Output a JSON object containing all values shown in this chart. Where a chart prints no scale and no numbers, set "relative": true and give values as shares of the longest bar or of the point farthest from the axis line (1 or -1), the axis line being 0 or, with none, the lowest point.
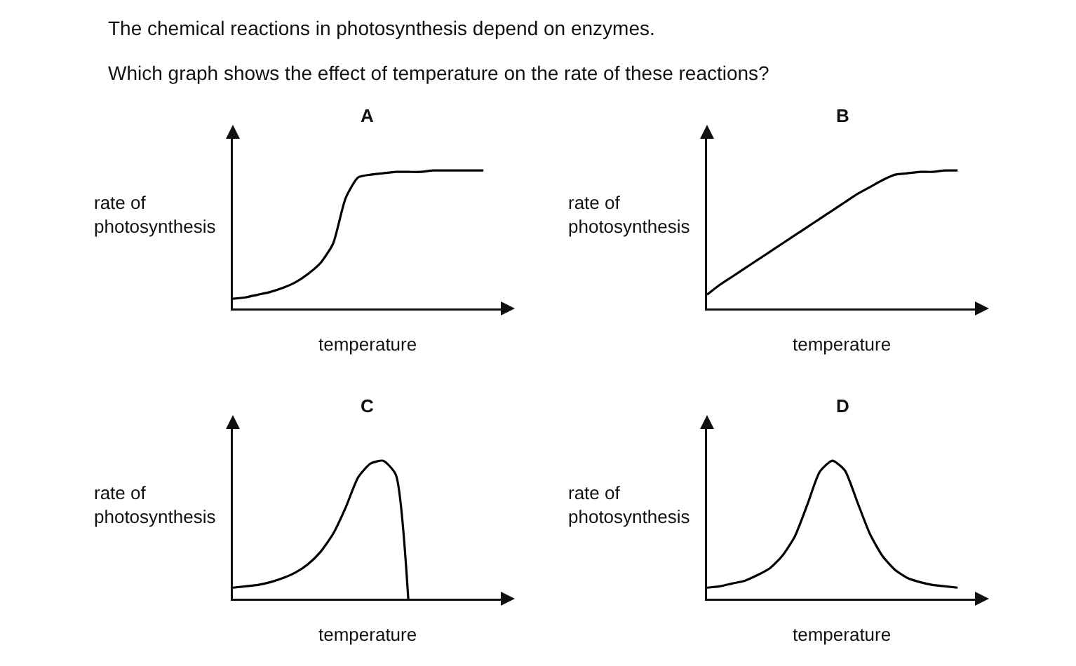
{
  "chart_data": [
    {
      "type": "line",
      "title": "A",
      "xlabel": "temperature",
      "ylabel": "rate of\nphotosynthesis",
      "relative": true,
      "annotations": [
        "The chemical reactions in photosynthesis depend on enzymes.",
        "Which graph shows the effect of temperature on the rate of these reactions?"
      ],
      "categories": [
        null,
        null,
        null,
        null,
        null,
        null,
        null,
        null,
        null,
        null,
        null,
        null,
        null,
        null,
        null,
        null,
        null,
        null,
        null,
        null,
        null
      ],
      "color": "#000000",
      "values": [
        0.07,
        0.08,
        0.1,
        0.12,
        0.15,
        0.19,
        0.25,
        0.33,
        0.47,
        0.8,
        0.95,
        0.97,
        0.98,
        0.99,
        0.99,
        0.99,
        1,
        1,
        1,
        1,
        1
      ]
    },
    {
      "type": "line",
      "title": "B",
      "xlabel": "temperature",
      "ylabel": "rate of\nphotosynthesis",
      "relative": true,
      "categories": [
        null,
        null,
        null,
        null,
        null,
        null,
        null,
        null,
        null,
        null,
        null,
        null,
        null,
        null,
        null,
        null,
        null,
        null,
        null,
        null,
        null
      ],
      "color": "#000000",
      "values": [
        0.1,
        0.17,
        0.23,
        0.29,
        0.35,
        0.41,
        0.47,
        0.53,
        0.59,
        0.65,
        0.71,
        0.77,
        0.83,
        0.88,
        0.93,
        0.97,
        0.98,
        0.99,
        0.99,
        1,
        1
      ]
    },
    {
      "type": "line",
      "title": "C",
      "xlabel": "temperature",
      "ylabel": "rate of\nphotosynthesis",
      "relative": true,
      "categories": [
        null,
        null,
        null,
        null,
        null,
        null,
        null,
        null,
        null,
        null,
        null,
        null,
        null,
        null,
        null,
        null,
        null,
        null,
        null,
        null,
        null
      ],
      "color": "#000000",
      "values": [
        0.08,
        0.09,
        0.1,
        0.12,
        0.15,
        0.19,
        0.25,
        0.34,
        0.47,
        0.66,
        0.88,
        0.98,
        1,
        0.9,
        0,
        null,
        null,
        null,
        null,
        null,
        null
      ]
    },
    {
      "type": "line",
      "title": "D",
      "xlabel": "temperature",
      "ylabel": "rate of\nphotosynthesis",
      "relative": true,
      "categories": [
        null,
        null,
        null,
        null,
        null,
        null,
        null,
        null,
        null,
        null,
        null,
        null,
        null,
        null,
        null,
        null,
        null,
        null,
        null,
        null,
        null
      ],
      "color": "#000000",
      "values": [
        0.08,
        0.09,
        0.11,
        0.13,
        0.17,
        0.22,
        0.31,
        0.45,
        0.68,
        0.92,
        1,
        0.93,
        0.7,
        0.47,
        0.31,
        0.21,
        0.15,
        0.12,
        0.1,
        0.09,
        0.08
      ]
    }
  ]
}
